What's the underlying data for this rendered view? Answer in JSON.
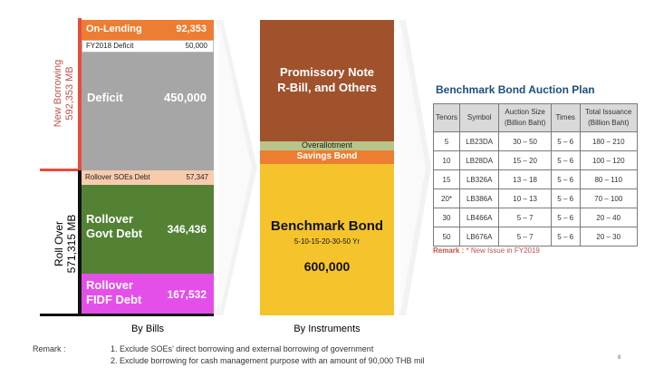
{
  "left_axis": {
    "new_borrowing_label": "New Borrowing",
    "new_borrowing_value": "592,353 MB",
    "rollover_label": "Roll Over",
    "rollover_value": "571,315 MB"
  },
  "by_bills": {
    "caption": "By Bills",
    "on_lending": {
      "label": "On-Lending",
      "value": "92,353"
    },
    "fy2018_deficit": {
      "label": "FY2018 Deficit",
      "value": "50,000"
    },
    "deficit": {
      "label": "Deficit",
      "value": "450,000"
    },
    "rollover_soes": {
      "label": "Rollover SOEs Debt",
      "value": "57,347"
    },
    "rollover_govt": {
      "label_line1": "Rollover",
      "label_line2": "Govt Debt",
      "value": "346,436"
    },
    "rollover_fidf": {
      "label_line1": "Rollover",
      "label_line2": "FIDF Debt",
      "value": "167,532"
    }
  },
  "by_instruments": {
    "caption": "By Instruments",
    "promissory": {
      "line1": "Promissory Note",
      "line2": "R-Bill, and Others"
    },
    "overallotment": "Overallotment",
    "savings_bond": "Savings Bond",
    "benchmark": {
      "title": "Benchmark Bond",
      "tenors": "5-10-15-20-30-50  Yr",
      "value": "600,000"
    }
  },
  "auction_plan": {
    "title": "Benchmark Bond Auction Plan",
    "headers": [
      "Tenors",
      "Symbol",
      "Auction Size (Billion Baht)",
      "Times",
      "Total Issuance (Billion Baht)"
    ],
    "header_lines": [
      [
        "Tenors"
      ],
      [
        "Symbol"
      ],
      [
        "Auction Size",
        "(Billion Baht)"
      ],
      [
        "Times"
      ],
      [
        "Total Issuance",
        "(Billion Baht)"
      ]
    ],
    "rows": [
      [
        "5",
        "LB23DA",
        "30  –  50",
        "5  –  6",
        "180  –  210"
      ],
      [
        "10",
        "LB28DA",
        "15  –  20",
        "5  –  6",
        "100  –  120"
      ],
      [
        "15",
        "LB326A",
        "13  –  18",
        "5  – 6",
        "80  –  110"
      ],
      [
        "20*",
        "LB386A",
        "10  –  13",
        "5  – 6",
        "70  –  100"
      ],
      [
        "30",
        "LB466A",
        "5  –  7",
        "5  –  6",
        "20  –  40"
      ],
      [
        "50",
        "LB676A",
        "5  –  7",
        "5  –  6",
        "20  –  30"
      ]
    ],
    "remark": "Remark :",
    "remark_text": "* New Issue in FY2019"
  },
  "footnote": {
    "label": "Remark :",
    "items": [
      "1. Exclude SOEs’ direct borrowing and external borrowing of government",
      "2. Exclude  borrowing for cash management purpose with an amount of 90,000 THB mil"
    ]
  },
  "page_number": "8",
  "colors": {
    "orange": "#ed7d31",
    "gray": "#a6a6a6",
    "peach": "#f8cbad",
    "green": "#548235",
    "pink": "#e54fe9",
    "brown": "#a0522d",
    "gold": "#f5c42c",
    "olive": "#b8c48a",
    "red_bar": "#e74c3c",
    "title_blue": "#1f4e79",
    "remark_red": "#c0504d"
  }
}
